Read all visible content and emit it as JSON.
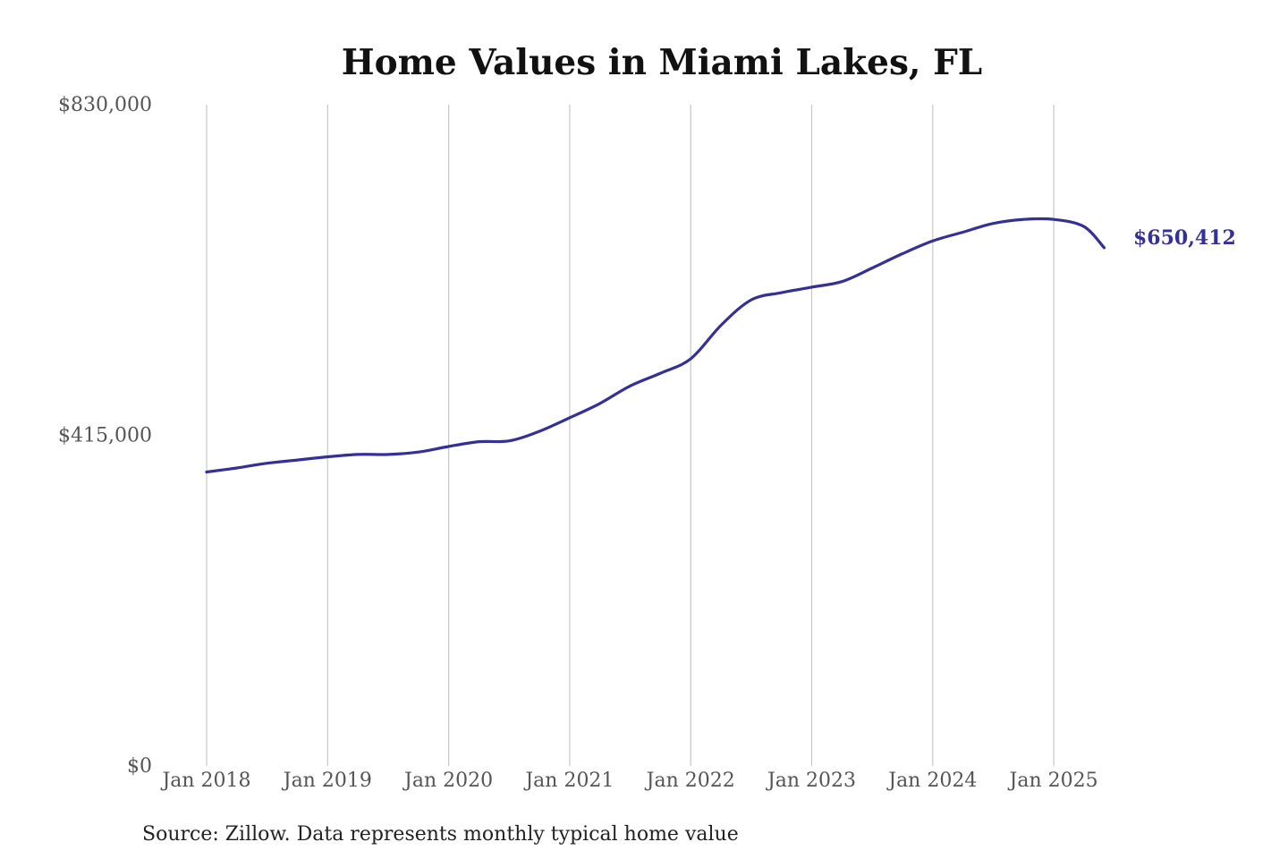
{
  "chart_data": {
    "type": "line",
    "title": "Home Values in Miami Lakes, FL",
    "xlabel": "",
    "ylabel": "",
    "ylim": [
      0,
      830000
    ],
    "yticks": [
      {
        "value": 0,
        "label": "$0"
      },
      {
        "value": 415000,
        "label": "$415,000"
      },
      {
        "value": 830000,
        "label": "$830,000"
      }
    ],
    "xticks": [
      {
        "value": "2018-01",
        "label": "Jan 2018"
      },
      {
        "value": "2019-01",
        "label": "Jan 2019"
      },
      {
        "value": "2020-01",
        "label": "Jan 2020"
      },
      {
        "value": "2021-01",
        "label": "Jan 2021"
      },
      {
        "value": "2022-01",
        "label": "Jan 2022"
      },
      {
        "value": "2023-01",
        "label": "Jan 2023"
      },
      {
        "value": "2024-01",
        "label": "Jan 2024"
      },
      {
        "value": "2025-01",
        "label": "Jan 2025"
      }
    ],
    "x_grid": true,
    "y_grid": false,
    "line_color": "#33309a",
    "series": [
      {
        "name": "",
        "points": [
          {
            "x": "2018-01",
            "y": 369000
          },
          {
            "x": "2018-04",
            "y": 374000
          },
          {
            "x": "2018-07",
            "y": 380000
          },
          {
            "x": "2018-10",
            "y": 384000
          },
          {
            "x": "2019-01",
            "y": 388000
          },
          {
            "x": "2019-04",
            "y": 391000
          },
          {
            "x": "2019-07",
            "y": 391000
          },
          {
            "x": "2019-10",
            "y": 394000
          },
          {
            "x": "2020-01",
            "y": 401000
          },
          {
            "x": "2020-04",
            "y": 407000
          },
          {
            "x": "2020-07",
            "y": 408000
          },
          {
            "x": "2020-10",
            "y": 420000
          },
          {
            "x": "2021-01",
            "y": 437000
          },
          {
            "x": "2021-04",
            "y": 455000
          },
          {
            "x": "2021-07",
            "y": 477000
          },
          {
            "x": "2021-10",
            "y": 493000
          },
          {
            "x": "2022-01",
            "y": 511000
          },
          {
            "x": "2022-04",
            "y": 553000
          },
          {
            "x": "2022-07",
            "y": 585000
          },
          {
            "x": "2022-10",
            "y": 594000
          },
          {
            "x": "2023-01",
            "y": 601000
          },
          {
            "x": "2023-04",
            "y": 608000
          },
          {
            "x": "2023-07",
            "y": 625000
          },
          {
            "x": "2023-10",
            "y": 643000
          },
          {
            "x": "2024-01",
            "y": 659000
          },
          {
            "x": "2024-04",
            "y": 670000
          },
          {
            "x": "2024-07",
            "y": 681000
          },
          {
            "x": "2024-10",
            "y": 686000
          },
          {
            "x": "2025-01",
            "y": 686000
          },
          {
            "x": "2025-04",
            "y": 677000
          },
          {
            "x": "2025-06",
            "y": 650412
          }
        ]
      }
    ],
    "end_label": "$650,412",
    "source": "Source: Zillow. Data represents monthly typical home value"
  }
}
